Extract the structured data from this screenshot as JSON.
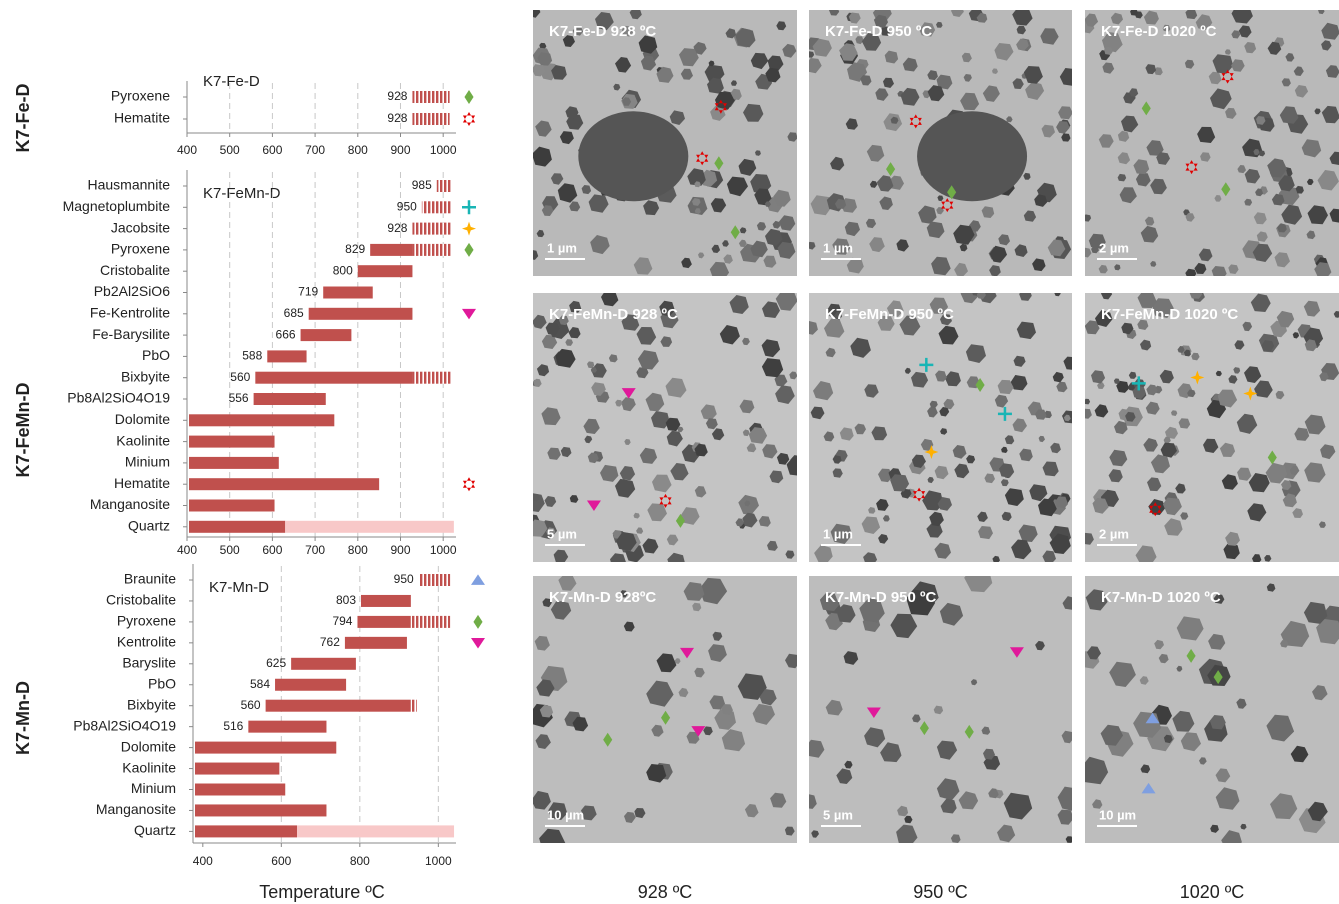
{
  "chart_data": [
    {
      "type": "range",
      "title": "K7-Fe-D",
      "group_label": "K7-Fe-D",
      "categories": [
        "Pyroxene",
        "Hematite"
      ],
      "start": [
        928,
        928
      ],
      "solid_end": [
        null,
        null
      ],
      "hatch_end": [
        1015,
        1015
      ],
      "faint_end": [
        null,
        null
      ],
      "markers": [
        {
          "shape": "diamond",
          "color": "#70ad47"
        },
        {
          "shape": "star6",
          "color": "#e00000"
        }
      ],
      "color": "#c0504d",
      "faint_color": "#f8c8c8",
      "xlim": [
        400,
        1030
      ],
      "xticks": [
        400,
        500,
        600,
        700,
        800,
        900,
        1000
      ],
      "grid": true
    },
    {
      "type": "range",
      "title": "K7-FeMn-D",
      "group_label": "K7-FeMn-D",
      "categories": [
        "Hausmannite",
        "Magnetoplumbite",
        "Jacobsite",
        "Pyroxene",
        "Cristobalite",
        "Pb2Al2SiO6",
        "Fe-Kentrolite",
        "Fe-Barysilite",
        "PbO",
        "Bixbyite",
        "Pb8Al2SiO4O19",
        "Dolomite",
        "Kaolinite",
        "Minium",
        "Hematite",
        "Manganosite",
        "Quartz"
      ],
      "start": [
        985,
        950,
        928,
        829,
        800,
        719,
        685,
        666,
        588,
        560,
        556,
        null,
        null,
        null,
        null,
        null,
        null
      ],
      "solid_end": [
        null,
        null,
        null,
        928,
        928,
        835,
        928,
        785,
        680,
        928,
        725,
        745,
        605,
        615,
        850,
        605,
        630
      ],
      "hatch_end": [
        1020,
        1020,
        1020,
        1020,
        null,
        null,
        null,
        null,
        null,
        1020,
        null,
        null,
        null,
        null,
        null,
        null,
        null
      ],
      "faint_end": [
        null,
        null,
        null,
        null,
        null,
        null,
        null,
        null,
        null,
        null,
        null,
        null,
        null,
        null,
        null,
        null,
        1025
      ],
      "markers": [
        null,
        {
          "shape": "plus",
          "color": "#19b5b5"
        },
        {
          "shape": "star4",
          "color": "#ffb000"
        },
        {
          "shape": "diamond",
          "color": "#70ad47"
        },
        null,
        null,
        {
          "shape": "tri-down",
          "color": "#e0199a"
        },
        null,
        null,
        null,
        null,
        null,
        null,
        null,
        {
          "shape": "star6",
          "color": "#e00000"
        },
        null,
        null
      ],
      "color": "#c0504d",
      "faint_color": "#f8c8c8",
      "xlim": [
        400,
        1030
      ],
      "xticks": [
        400,
        500,
        600,
        700,
        800,
        900,
        1000
      ],
      "grid": true
    },
    {
      "type": "range",
      "title": "K7-Mn-D",
      "group_label": "K7-Mn-D",
      "x_label": "Temperature ºC",
      "categories": [
        "Braunite",
        "Cristobalite",
        "Pyroxene",
        "Kentrolite",
        "Baryslite",
        "PbO",
        "Bixbyite",
        "Pb8Al2SiO4O19",
        "Dolomite",
        "Kaolinite",
        "Minium",
        "Manganosite",
        "Quartz"
      ],
      "start": [
        950,
        803,
        794,
        762,
        625,
        584,
        560,
        516,
        null,
        null,
        null,
        null,
        null
      ],
      "solid_end": [
        null,
        930,
        930,
        920,
        790,
        765,
        930,
        715,
        740,
        595,
        610,
        715,
        640
      ],
      "hatch_end": [
        1030,
        null,
        1030,
        null,
        null,
        null,
        945,
        null,
        null,
        null,
        null,
        null,
        null
      ],
      "faint_end": [
        null,
        null,
        null,
        null,
        null,
        null,
        null,
        null,
        null,
        null,
        null,
        null,
        1040
      ],
      "markers": [
        {
          "shape": "tri-up",
          "color": "#7f9fe0"
        },
        null,
        {
          "shape": "diamond",
          "color": "#70ad47"
        },
        {
          "shape": "tri-down",
          "color": "#e0199a"
        },
        null,
        null,
        null,
        null,
        null,
        null,
        null,
        null,
        null
      ],
      "color": "#c0504d",
      "faint_color": "#f8c8c8",
      "xlim": [
        375,
        1045
      ],
      "xticks": [
        400,
        600,
        800,
        1000
      ],
      "grid": true
    }
  ],
  "images": [
    {
      "title": "K7-Fe-D 928 ºC",
      "scale": "1 µm"
    },
    {
      "title": "K7-Fe-D 950 ºC",
      "scale": "1 µm"
    },
    {
      "title": "K7-Fe-D 1020 ºC",
      "scale": "2 µm"
    },
    {
      "title": "K7-FeMn-D 928 ºC",
      "scale": "5 µm"
    },
    {
      "title": "K7-FeMn-D 950 ºC",
      "scale": "1 µm"
    },
    {
      "title": "K7-FeMn-D 1020 ºC",
      "scale": "2 µm"
    },
    {
      "title": "K7-Mn-D 928ºC",
      "scale": "10 µm"
    },
    {
      "title": "K7-Mn-D 950 ºC",
      "scale": "5 µm"
    },
    {
      "title": "K7-Mn-D 1020 ºC",
      "scale": "10 µm"
    }
  ],
  "columns": [
    "928 ºC",
    "950 ºC",
    "1020 ºC"
  ]
}
